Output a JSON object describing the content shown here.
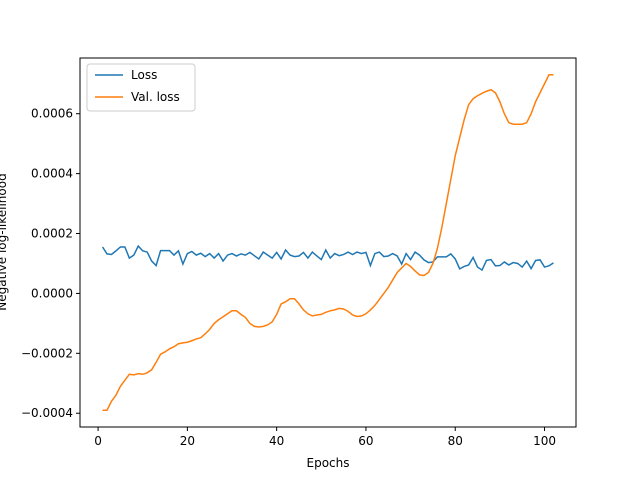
{
  "chart_data": {
    "type": "line",
    "xlabel": "Epochs",
    "ylabel": "Negative log-likelihood",
    "x": [
      1,
      2,
      3,
      4,
      5,
      6,
      7,
      8,
      9,
      10,
      11,
      12,
      13,
      14,
      15,
      16,
      17,
      18,
      19,
      20,
      21,
      22,
      23,
      24,
      25,
      26,
      27,
      28,
      29,
      30,
      31,
      32,
      33,
      34,
      35,
      36,
      37,
      38,
      39,
      40,
      41,
      42,
      43,
      44,
      45,
      46,
      47,
      48,
      49,
      50,
      51,
      52,
      53,
      54,
      55,
      56,
      57,
      58,
      59,
      60,
      61,
      62,
      63,
      64,
      65,
      66,
      67,
      68,
      69,
      70,
      71,
      72,
      73,
      74,
      75,
      76,
      77,
      78,
      79,
      80,
      81,
      82,
      83,
      84,
      85,
      86,
      87,
      88,
      89,
      90,
      91,
      92,
      93,
      94,
      95,
      96,
      97,
      98,
      99,
      100,
      101,
      102
    ],
    "series": [
      {
        "name": "Loss",
        "color": "#1f77b4",
        "values": [
          0.000155,
          0.000132,
          0.00013,
          0.000142,
          0.000155,
          0.000155,
          0.000118,
          0.000128,
          0.000158,
          0.000142,
          0.000138,
          0.000108,
          9.3e-05,
          0.000143,
          0.000143,
          0.000143,
          0.000128,
          0.000142,
          9.8e-05,
          0.000133,
          0.00014,
          0.000128,
          0.000134,
          0.000123,
          0.000133,
          0.000118,
          0.000133,
          0.000108,
          0.000128,
          0.000133,
          0.000125,
          0.000132,
          0.000128,
          0.000137,
          0.000126,
          0.000115,
          0.000138,
          0.000128,
          0.000118,
          0.000137,
          0.000115,
          0.000145,
          0.000128,
          0.000123,
          0.000125,
          0.000137,
          0.000118,
          0.000138,
          0.000125,
          0.000113,
          0.000145,
          0.000118,
          0.000133,
          0.000126,
          0.00013,
          0.000138,
          0.00013,
          0.000138,
          0.000133,
          0.000137,
          9.3e-05,
          0.000133,
          0.000138,
          0.000123,
          0.000125,
          0.000133,
          0.000125,
          9.8e-05,
          0.000133,
          0.000113,
          0.000138,
          0.000128,
          0.000112,
          0.000103,
          0.000105,
          0.000122,
          0.000122,
          0.000122,
          0.000132,
          0.000115,
          8.2e-05,
          9e-05,
          9.5e-05,
          0.00012,
          8.8e-05,
          7.8e-05,
          0.00011,
          0.000113,
          9.2e-05,
          9.3e-05,
          0.000105,
          9.5e-05,
          0.000103,
          0.0001,
          8.8e-05,
          0.000108,
          8.3e-05,
          0.00011,
          0.000112,
          8.8e-05,
          9.2e-05,
          0.000102
        ]
      },
      {
        "name": "Val. loss",
        "color": "#ff7f0e",
        "values": [
          -0.00039,
          -0.00039,
          -0.00036,
          -0.00034,
          -0.00031,
          -0.00029,
          -0.00027,
          -0.000272,
          -0.000268,
          -0.00027,
          -0.000265,
          -0.000255,
          -0.00023,
          -0.000203,
          -0.000195,
          -0.000185,
          -0.000178,
          -0.000168,
          -0.000165,
          -0.000163,
          -0.000158,
          -0.000152,
          -0.000148,
          -0.000135,
          -0.00012,
          -0.0001,
          -8.8e-05,
          -7.8e-05,
          -6.8e-05,
          -5.8e-05,
          -5.8e-05,
          -7e-05,
          -8e-05,
          -0.0001,
          -0.00011,
          -0.000112,
          -0.00011,
          -0.000105,
          -9.5e-05,
          -7e-05,
          -3.5e-05,
          -2.8e-05,
          -1.8e-05,
          -1.8e-05,
          -3.5e-05,
          -5.5e-05,
          -6.8e-05,
          -7.5e-05,
          -7.2e-05,
          -7e-05,
          -6.3e-05,
          -5.8e-05,
          -5.5e-05,
          -5e-05,
          -5.2e-05,
          -6e-05,
          -7.2e-05,
          -7.7e-05,
          -7.5e-05,
          -6.8e-05,
          -5.5e-05,
          -4e-05,
          -2e-05,
          0.0,
          2e-05,
          4.5e-05,
          7e-05,
          8.5e-05,
          0.0001,
          9e-05,
          7.5e-05,
          6.2e-05,
          6e-05,
          7e-05,
          0.0001,
          0.00015,
          0.00022,
          0.0003,
          0.00038,
          0.00046,
          0.00052,
          0.00058,
          0.00063,
          0.00065,
          0.00066,
          0.000668,
          0.000675,
          0.00068,
          0.00067,
          0.00064,
          0.0006,
          0.00057,
          0.000565,
          0.000565,
          0.000565,
          0.00057,
          0.0006,
          0.00064,
          0.00067,
          0.0007,
          0.00073,
          0.00073
        ]
      }
    ],
    "xlim": [
      -4.05,
      107.05
    ],
    "xticks": [
      0,
      20,
      40,
      60,
      80,
      100
    ],
    "ylim": [
      -0.000446,
      0.000786
    ],
    "yticks": [
      {
        "value": -0.0004,
        "label": "−0.0004"
      },
      {
        "value": -0.0002,
        "label": "−0.0002"
      },
      {
        "value": 0,
        "label": "0.0000"
      },
      0.0002,
      0.0004,
      0.0006
    ],
    "legend": "upper left"
  }
}
